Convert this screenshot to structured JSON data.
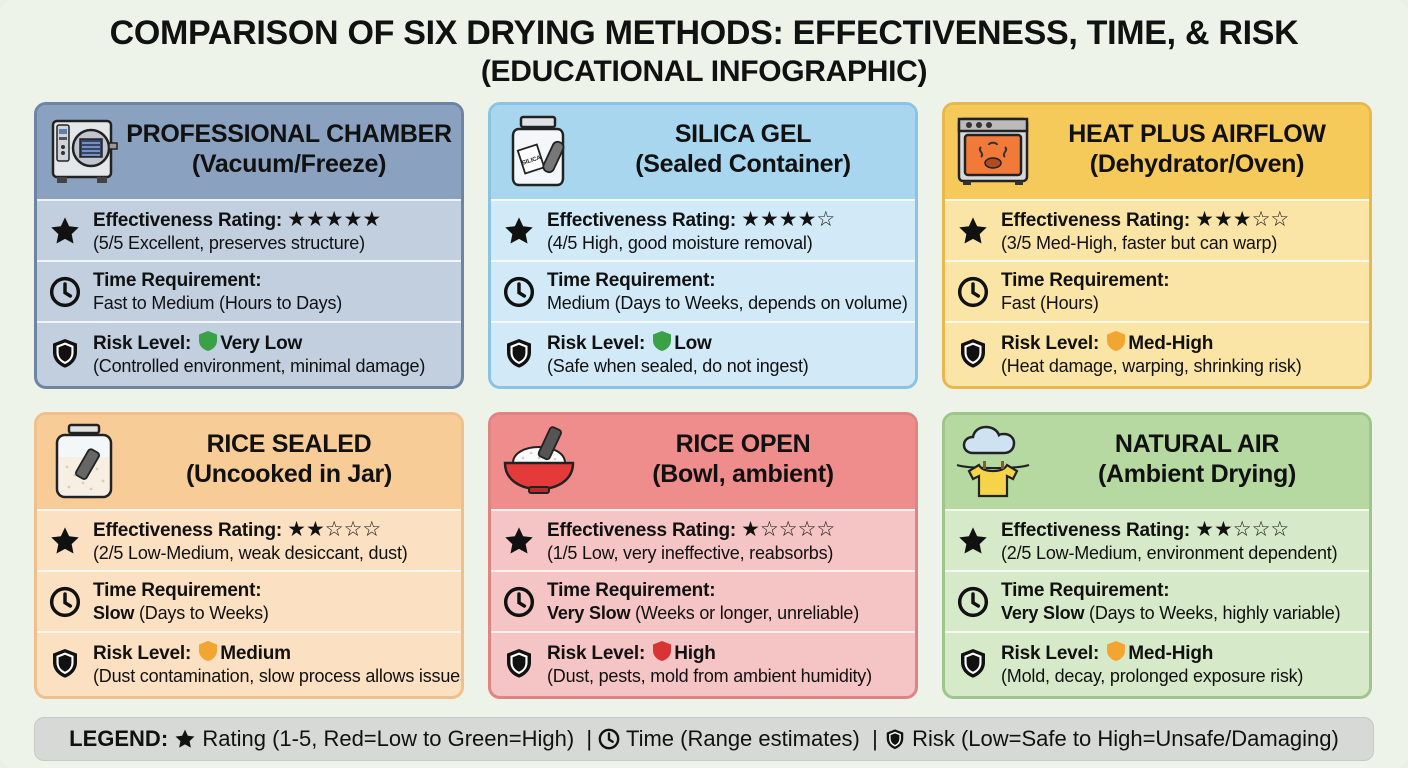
{
  "page": {
    "title": "COMPARISON OF SIX DRYING METHODS: EFFECTIVENESS, TIME, & RISK",
    "subtitle": "(EDUCATIONAL INFOGRAPHIC)"
  },
  "colors": {
    "risk_very_low": "#3aa146",
    "risk_low": "#3aa146",
    "risk_medium": "#f2a531",
    "risk_med_high": "#f2a531",
    "risk_high": "#d93434"
  },
  "cards": [
    {
      "theme": "blue",
      "icon": "vacuum-chamber-icon",
      "title_line1": "PROFESSIONAL CHAMBER",
      "title_line2": "(Vacuum/Freeze)",
      "effectiveness_label": "Effectiveness Rating:",
      "rating": 5,
      "effectiveness_stars": "★★★★★",
      "effectiveness_detail": "(5/5 Excellent, preserves structure)",
      "time_label": "Time Requirement:",
      "time_bold": "",
      "time_detail": "Fast to Medium (Hours to Days)",
      "risk_label": "Risk Level:",
      "risk_color": "#3aa146",
      "risk_value": "Very Low",
      "risk_detail": "(Controlled environment, minimal damage)"
    },
    {
      "theme": "lblue",
      "icon": "silica-jar-icon",
      "icon_text": "SILICA",
      "title_line1": "SILICA GEL",
      "title_line2": "(Sealed Container)",
      "effectiveness_label": "Effectiveness Rating:",
      "rating": 4,
      "effectiveness_stars": "★★★★☆",
      "effectiveness_detail": "(4/5 High, good moisture removal)",
      "time_label": "Time Requirement:",
      "time_bold": "",
      "time_detail": "Medium (Days to Weeks, depends on volume)",
      "risk_label": "Risk Level:",
      "risk_color": "#3aa146",
      "risk_value": "Low",
      "risk_detail": "(Safe when sealed, do not ingest)"
    },
    {
      "theme": "yellow",
      "icon": "oven-icon",
      "title_line1": "HEAT PLUS AIRFLOW",
      "title_line2": "(Dehydrator/Oven)",
      "effectiveness_label": "Effectiveness Rating:",
      "rating": 3,
      "effectiveness_stars": "★★★☆☆",
      "effectiveness_detail": "(3/5 Med-High, faster but can warp)",
      "time_label": "Time Requirement:",
      "time_bold": "",
      "time_detail": "Fast (Hours)",
      "risk_label": "Risk Level:",
      "risk_color": "#f2a531",
      "risk_value": "Med-High",
      "risk_detail": "(Heat damage, warping, shrinking risk)"
    },
    {
      "theme": "peach",
      "icon": "rice-jar-icon",
      "title_line1": "RICE SEALED",
      "title_line2": "(Uncooked in Jar)",
      "effectiveness_label": "Effectiveness Rating:",
      "rating": 2,
      "effectiveness_stars": "★★☆☆☆",
      "effectiveness_detail": "(2/5 Low-Medium, weak desiccant, dust)",
      "time_label": "Time Requirement:",
      "time_bold": "Slow",
      "time_detail": " (Days to Weeks)",
      "risk_label": "Risk Level:",
      "risk_color": "#f2a531",
      "risk_value": "Medium",
      "risk_detail": "(Dust contamination, slow process allows issues)"
    },
    {
      "theme": "red",
      "icon": "rice-bowl-icon",
      "title_line1": "RICE OPEN",
      "title_line2": "(Bowl, ambient)",
      "effectiveness_label": "Effectiveness Rating:",
      "rating": 1,
      "effectiveness_stars": "★☆☆☆☆",
      "effectiveness_detail": "(1/5 Low, very ineffective, reabsorbs)",
      "time_label": "Time Requirement:",
      "time_bold": "Very Slow",
      "time_detail": " (Weeks or longer, unreliable)",
      "risk_label": "Risk Level:",
      "risk_color": "#d93434",
      "risk_value": "High",
      "risk_detail": "(Dust, pests, mold from ambient humidity)"
    },
    {
      "theme": "green",
      "icon": "cloud-clothesline-icon",
      "title_line1": "NATURAL AIR",
      "title_line2": "(Ambient Drying)",
      "effectiveness_label": "Effectiveness Rating:",
      "rating": 2,
      "effectiveness_stars": "★★☆☆☆",
      "effectiveness_detail": "(2/5 Low-Medium, environment dependent)",
      "time_label": "Time Requirement:",
      "time_bold": "Very Slow",
      "time_detail": " (Days to Weeks, highly variable)",
      "risk_label": "Risk Level:",
      "risk_color": "#f2a531",
      "risk_value": "Med-High",
      "risk_detail": "(Mold, decay, prolonged exposure risk)"
    }
  ],
  "legend": {
    "title": "LEGEND:",
    "rating": "Rating (1-5, Red=Low to Green=High)",
    "sep1": "|",
    "time": "Time (Range estimates)",
    "sep2": "|",
    "risk": "Risk (Low=Safe to High=Unsafe/Damaging)"
  }
}
